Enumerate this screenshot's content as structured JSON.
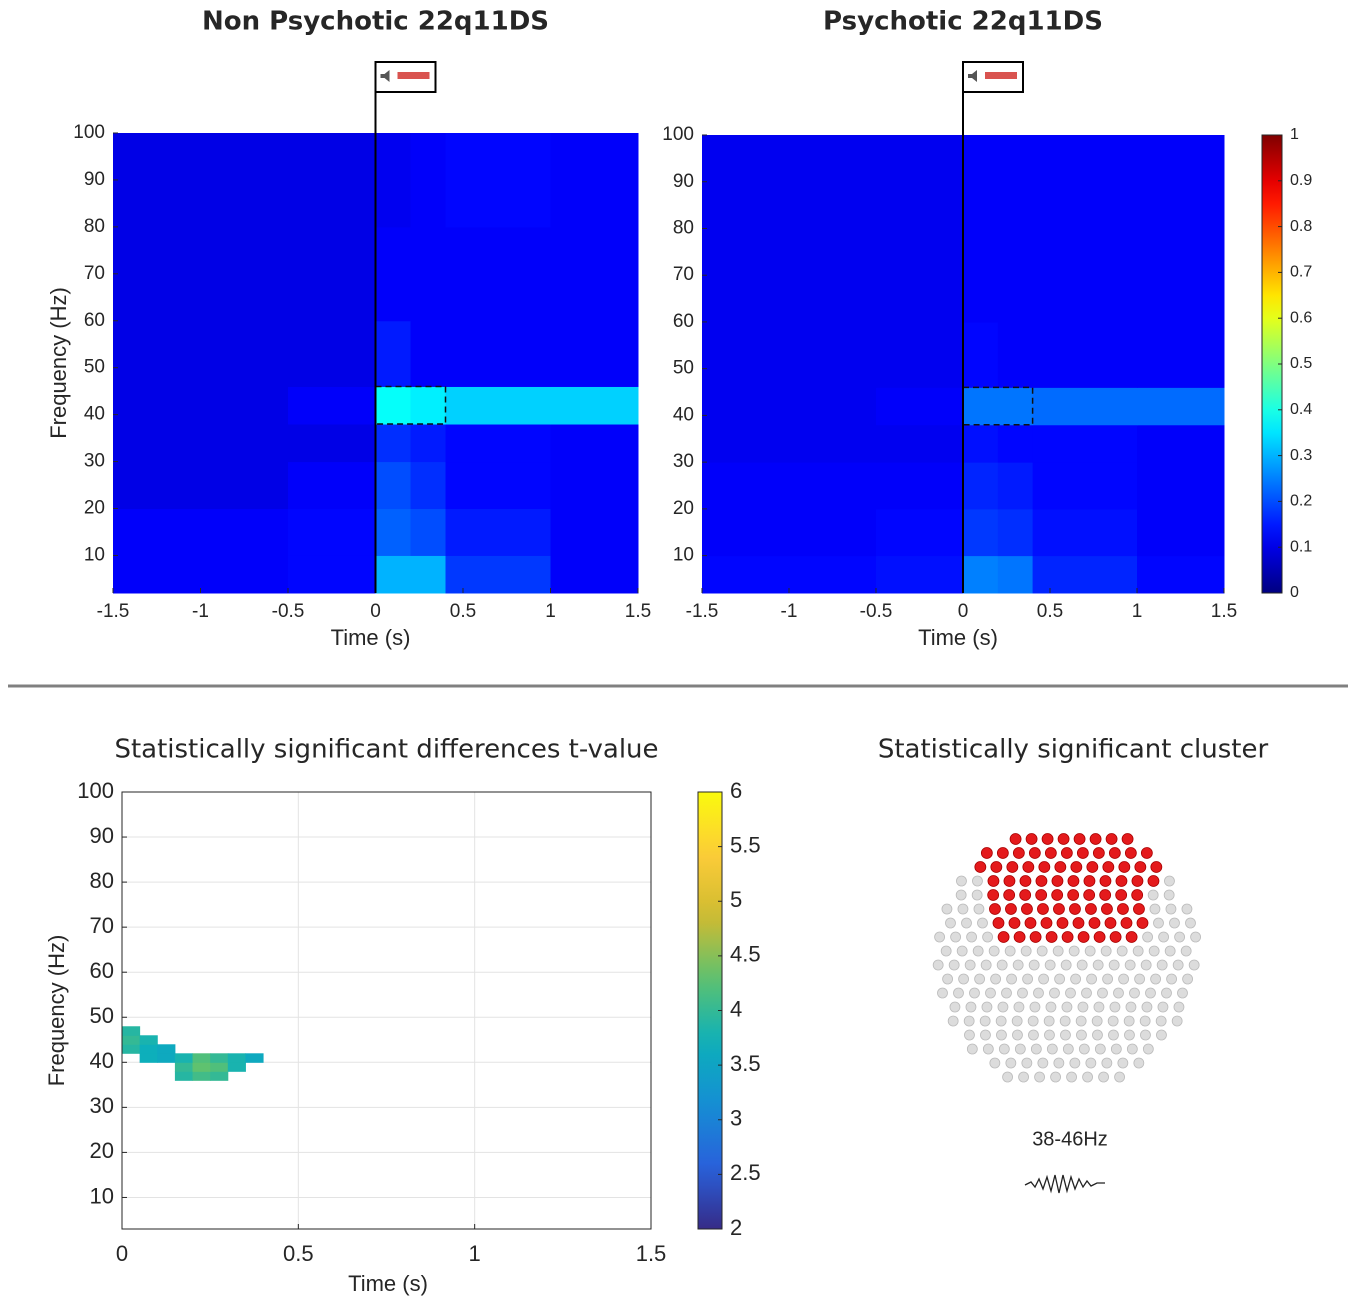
{
  "chart_data": [
    {
      "type": "heatmap",
      "title": "Non Psychotic 22q11DS",
      "xlabel": "Time (s)",
      "ylabel": "Frequency (Hz)",
      "xlim": [
        -1.5,
        1.5
      ],
      "ylim": [
        2,
        100
      ],
      "xticks": [
        -1.5,
        -1,
        -0.5,
        0,
        0.5,
        1,
        1.5
      ],
      "yticks": [
        10,
        20,
        30,
        40,
        50,
        60,
        70,
        80,
        90,
        100
      ],
      "x_edges": [
        -1.5,
        -1,
        -0.5,
        0,
        0.2,
        0.4,
        1,
        1.5
      ],
      "y_edges": [
        2,
        10,
        20,
        30,
        38,
        46,
        60,
        80,
        100
      ],
      "z": [
        [
          0.12,
          0.12,
          0.13,
          0.3,
          0.3,
          0.18,
          0.12
        ],
        [
          0.12,
          0.12,
          0.13,
          0.22,
          0.2,
          0.15,
          0.12
        ],
        [
          0.1,
          0.1,
          0.12,
          0.2,
          0.17,
          0.13,
          0.12
        ],
        [
          0.1,
          0.1,
          0.1,
          0.17,
          0.15,
          0.13,
          0.12
        ],
        [
          0.1,
          0.1,
          0.12,
          0.38,
          0.36,
          0.33,
          0.33
        ],
        [
          0.1,
          0.1,
          0.1,
          0.15,
          0.12,
          0.12,
          0.12
        ],
        [
          0.1,
          0.1,
          0.1,
          0.12,
          0.12,
          0.12,
          0.12
        ],
        [
          0.1,
          0.1,
          0.1,
          0.11,
          0.12,
          0.13,
          0.12
        ]
      ],
      "colormap": "jet",
      "clim": [
        0,
        1
      ],
      "stimulus_x": 0,
      "highlight": {
        "x": [
          0,
          0.4
        ],
        "y": [
          38,
          46
        ]
      }
    },
    {
      "type": "heatmap",
      "title": "Psychotic 22q11DS",
      "xlabel": "Time (s)",
      "xlim": [
        -1.5,
        1.5
      ],
      "ylim": [
        2,
        100
      ],
      "xticks": [
        -1.5,
        -1,
        -0.5,
        0,
        0.5,
        1,
        1.5
      ],
      "yticks": [
        10,
        20,
        30,
        40,
        50,
        60,
        70,
        80,
        90,
        100
      ],
      "x_edges": [
        -1.5,
        -1,
        -0.5,
        0,
        0.2,
        0.4,
        1,
        1.5
      ],
      "y_edges": [
        2,
        10,
        20,
        30,
        38,
        46,
        60,
        80,
        100
      ],
      "z": [
        [
          0.13,
          0.13,
          0.14,
          0.25,
          0.24,
          0.16,
          0.13
        ],
        [
          0.12,
          0.12,
          0.13,
          0.18,
          0.17,
          0.14,
          0.12
        ],
        [
          0.12,
          0.12,
          0.12,
          0.16,
          0.15,
          0.13,
          0.12
        ],
        [
          0.11,
          0.11,
          0.11,
          0.14,
          0.13,
          0.13,
          0.12
        ],
        [
          0.11,
          0.11,
          0.12,
          0.24,
          0.24,
          0.23,
          0.23
        ],
        [
          0.11,
          0.11,
          0.11,
          0.13,
          0.12,
          0.12,
          0.12
        ],
        [
          0.11,
          0.11,
          0.11,
          0.12,
          0.12,
          0.12,
          0.12
        ],
        [
          0.11,
          0.11,
          0.11,
          0.12,
          0.12,
          0.12,
          0.12
        ]
      ],
      "colormap": "jet",
      "clim": [
        0,
        1
      ],
      "cticks": [
        0,
        0.1,
        0.2,
        0.3,
        0.4,
        0.5,
        0.6,
        0.7,
        0.8,
        0.9,
        1
      ],
      "stimulus_x": 0,
      "highlight": {
        "x": [
          0,
          0.4
        ],
        "y": [
          38,
          46
        ]
      }
    },
    {
      "type": "heatmap",
      "title": "Statistically significant differences t-value",
      "xlabel": "Time (s)",
      "ylabel": "Frequency (Hz)",
      "xlim": [
        0,
        1.5
      ],
      "ylim": [
        3,
        100
      ],
      "xticks": [
        0,
        0.5,
        1,
        1.5
      ],
      "yticks": [
        10,
        20,
        30,
        40,
        50,
        60,
        70,
        80,
        90,
        100
      ],
      "grid": true,
      "x_edges": [
        0,
        0.05,
        0.1,
        0.15,
        0.2,
        0.25,
        0.3,
        0.35,
        0.4
      ],
      "y_edges": [
        36,
        38,
        40,
        42,
        44,
        46,
        48
      ],
      "z": [
        [
          null,
          null,
          null,
          3.9,
          4.1,
          4.0,
          null,
          null
        ],
        [
          null,
          null,
          null,
          4.0,
          4.3,
          4.2,
          3.8,
          null
        ],
        [
          null,
          3.7,
          3.6,
          3.8,
          4.2,
          4.0,
          3.8,
          3.6
        ],
        [
          3.9,
          3.7,
          3.6,
          null,
          null,
          null,
          null,
          null
        ],
        [
          4.0,
          3.8,
          null,
          null,
          null,
          null,
          null,
          null
        ],
        [
          3.9,
          null,
          null,
          null,
          null,
          null,
          null,
          null
        ]
      ],
      "colormap": "parula",
      "clim": [
        2,
        6
      ],
      "cticks": [
        2,
        2.5,
        3,
        3.5,
        4,
        4.5,
        5,
        5.5,
        6
      ]
    }
  ],
  "cluster_panel": {
    "title": "Statistically significant cluster",
    "band_label": "38-46Hz"
  }
}
